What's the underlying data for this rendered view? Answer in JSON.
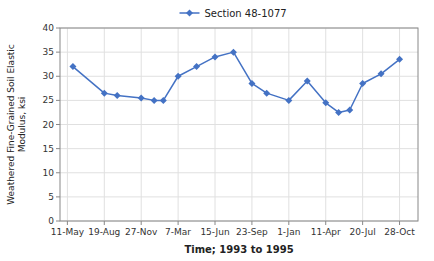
{
  "chart_data": {
    "type": "line",
    "xlabel": "Time; 1993 to 1995",
    "ylabel": "Weathered Fine-Grained Soil Elastic\nModulus, ksi",
    "x": [
      0.15,
      1.0,
      1.35,
      2.0,
      2.35,
      2.6,
      3.0,
      3.5,
      4.0,
      4.5,
      5.0,
      5.4,
      6.0,
      6.5,
      7.0,
      7.35,
      7.65,
      8.0,
      8.5,
      9.0
    ],
    "series": [
      {
        "name": "Section 48-1077",
        "color": "#4472C4",
        "marker": "diamond",
        "values": [
          32,
          26.5,
          26.0,
          25.5,
          25.0,
          25.0,
          30.0,
          32.0,
          34.0,
          35.0,
          28.5,
          26.5,
          25.0,
          29.0,
          24.5,
          22.5,
          23.0,
          28.5,
          30.5,
          33.5
        ]
      }
    ],
    "xlim": [
      -0.2,
      9.5
    ],
    "ylim": [
      0,
      40
    ],
    "xticks": [
      {
        "value": 0,
        "label": "11-May"
      },
      {
        "value": 1,
        "label": "19-Aug"
      },
      {
        "value": 2,
        "label": "27-Nov"
      },
      {
        "value": 3,
        "label": "7-Mar"
      },
      {
        "value": 4,
        "label": "15-Jun"
      },
      {
        "value": 5,
        "label": "23-Sep"
      },
      {
        "value": 6,
        "label": "1-Jan"
      },
      {
        "value": 7,
        "label": "11-Apr"
      },
      {
        "value": 8,
        "label": "20-Jul"
      },
      {
        "value": 9,
        "label": "28-Oct"
      }
    ],
    "yticks": [
      0,
      5,
      10,
      15,
      20,
      25,
      30,
      35,
      40
    ],
    "grid": true,
    "legend": "top"
  }
}
